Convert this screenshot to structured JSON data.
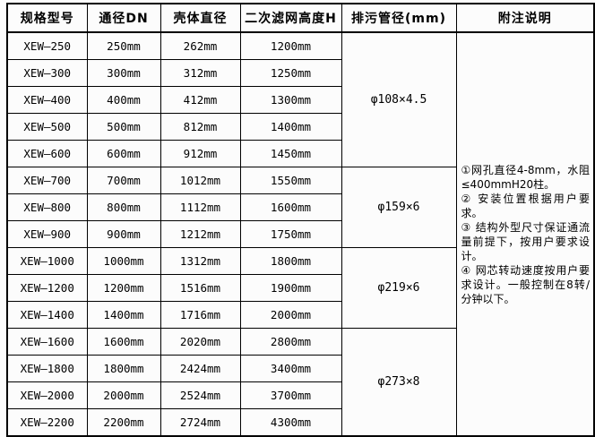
{
  "table": {
    "headers": [
      "规格型号",
      "通径DN",
      "壳体直径",
      "二次滤网高度H",
      "排污管径(mm)",
      "附注说明"
    ],
    "rows": [
      {
        "model": "XEW—250",
        "dn": "250mm",
        "shell": "262mm",
        "height": "1200mm"
      },
      {
        "model": "XEW—300",
        "dn": "300mm",
        "shell": "312mm",
        "height": "1250mm"
      },
      {
        "model": "XEW—400",
        "dn": "400mm",
        "shell": "412mm",
        "height": "1300mm"
      },
      {
        "model": "XEW—500",
        "dn": "500mm",
        "shell": "812mm",
        "height": "1400mm"
      },
      {
        "model": "XEW—600",
        "dn": "600mm",
        "shell": "912mm",
        "height": "1450mm"
      },
      {
        "model": "XEW—700",
        "dn": "700mm",
        "shell": "1012mm",
        "height": "1550mm"
      },
      {
        "model": "XEW—800",
        "dn": "800mm",
        "shell": "1112mm",
        "height": "1600mm"
      },
      {
        "model": "XEW—900",
        "dn": "900mm",
        "shell": "1212mm",
        "height": "1750mm"
      },
      {
        "model": "XEW—1000",
        "dn": "1000mm",
        "shell": "1312mm",
        "height": "1800mm"
      },
      {
        "model": "XEW—1200",
        "dn": "1200mm",
        "shell": "1516mm",
        "height": "1900mm"
      },
      {
        "model": "XEW—1400",
        "dn": "1400mm",
        "shell": "1716mm",
        "height": "2000mm"
      },
      {
        "model": "XEW—1600",
        "dn": "1600mm",
        "shell": "2020mm",
        "height": "2800mm"
      },
      {
        "model": "XEW—1800",
        "dn": "1800mm",
        "shell": "2424mm",
        "height": "3400mm"
      },
      {
        "model": "XEW—2000",
        "dn": "2000mm",
        "shell": "2524mm",
        "height": "3700mm"
      },
      {
        "model": "XEW—2200",
        "dn": "2200mm",
        "shell": "2724mm",
        "height": "4300mm"
      }
    ],
    "drain_groups": [
      {
        "label": "φ108×4.5",
        "rowspan": 5
      },
      {
        "label": "φ159×6",
        "rowspan": 3
      },
      {
        "label": "φ219×6",
        "rowspan": 3
      },
      {
        "label": "φ273×8",
        "rowspan": 4
      }
    ],
    "notes": [
      "①网孔直径4-8mm，水阻≤400mmH20柱。",
      "② 安装位置根据用户要求。",
      "③ 结构外型尺寸保证通流量前提下，按用户要求设计。",
      "④ 网芯转动速度按用户要求设计。一般控制在8转/分钟以下。"
    ]
  },
  "colors": {
    "border": "#000000",
    "text": "#000000",
    "background": "#fcfcfc"
  }
}
